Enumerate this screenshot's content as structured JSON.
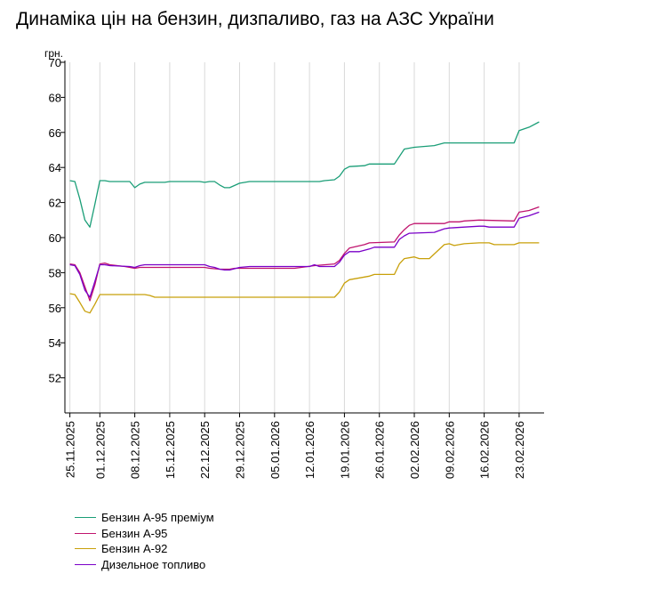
{
  "title": "Динаміка цін на бензин, дизпаливо, газ на АЗС України",
  "chart_data": {
    "type": "line",
    "title": "Динаміка цін на бензин, дизпаливо, газ на АЗС України",
    "ylabel": "грн.",
    "ylim": [
      50,
      70
    ],
    "yticks": [
      52,
      54,
      56,
      58,
      60,
      62,
      64,
      66,
      68,
      70
    ],
    "xlim": [
      "2025-11-24",
      "2026-02-28"
    ],
    "xticks": [
      {
        "date": "2025-11-25",
        "label": "25.11.2025"
      },
      {
        "date": "2025-12-01",
        "label": "01.12.2025"
      },
      {
        "date": "2025-12-08",
        "label": "08.12.2025"
      },
      {
        "date": "2025-12-15",
        "label": "15.12.2025"
      },
      {
        "date": "2025-12-22",
        "label": "22.12.2025"
      },
      {
        "date": "2025-12-29",
        "label": "29.12.2025"
      },
      {
        "date": "2026-01-05",
        "label": "05.01.2026"
      },
      {
        "date": "2026-01-12",
        "label": "12.01.2026"
      },
      {
        "date": "2026-01-19",
        "label": "19.01.2026"
      },
      {
        "date": "2026-01-26",
        "label": "26.01.2026"
      },
      {
        "date": "2026-02-02",
        "label": "02.02.2026"
      },
      {
        "date": "2026-02-09",
        "label": "09.02.2026"
      },
      {
        "date": "2026-02-16",
        "label": "16.02.2026"
      },
      {
        "date": "2026-02-23",
        "label": "23.02.2026"
      }
    ],
    "series": [
      {
        "name": "Бензин А-95 преміум",
        "color": "#1a9e77",
        "points": [
          [
            "2025-11-25",
            63.25
          ],
          [
            "2025-11-26",
            63.2
          ],
          [
            "2025-11-27",
            62.2
          ],
          [
            "2025-11-28",
            61.0
          ],
          [
            "2025-11-29",
            60.6
          ],
          [
            "2025-11-30",
            61.9
          ],
          [
            "2025-12-01",
            63.25
          ],
          [
            "2025-12-02",
            63.25
          ],
          [
            "2025-12-03",
            63.2
          ],
          [
            "2025-12-07",
            63.2
          ],
          [
            "2025-12-08",
            62.85
          ],
          [
            "2025-12-09",
            63.05
          ],
          [
            "2025-12-10",
            63.15
          ],
          [
            "2025-12-14",
            63.15
          ],
          [
            "2025-12-15",
            63.2
          ],
          [
            "2025-12-21",
            63.2
          ],
          [
            "2025-12-22",
            63.15
          ],
          [
            "2025-12-23",
            63.2
          ],
          [
            "2025-12-24",
            63.2
          ],
          [
            "2025-12-25",
            63.0
          ],
          [
            "2025-12-26",
            62.85
          ],
          [
            "2025-12-27",
            62.85
          ],
          [
            "2025-12-29",
            63.1
          ],
          [
            "2025-12-31",
            63.2
          ],
          [
            "2026-01-14",
            63.2
          ],
          [
            "2026-01-15",
            63.25
          ],
          [
            "2026-01-17",
            63.3
          ],
          [
            "2026-01-18",
            63.5
          ],
          [
            "2026-01-19",
            63.9
          ],
          [
            "2026-01-20",
            64.05
          ],
          [
            "2026-01-23",
            64.1
          ],
          [
            "2026-01-24",
            64.2
          ],
          [
            "2026-01-29",
            64.2
          ],
          [
            "2026-01-31",
            65.05
          ],
          [
            "2026-02-02",
            65.15
          ],
          [
            "2026-02-06",
            65.25
          ],
          [
            "2026-02-08",
            65.4
          ],
          [
            "2026-02-22",
            65.4
          ],
          [
            "2026-02-23",
            66.1
          ],
          [
            "2026-02-25",
            66.3
          ],
          [
            "2026-02-27",
            66.6
          ]
        ]
      },
      {
        "name": "Бензин А-95",
        "color": "#c0146e",
        "points": [
          [
            "2025-11-25",
            58.5
          ],
          [
            "2025-11-26",
            58.45
          ],
          [
            "2025-11-27",
            58.0
          ],
          [
            "2025-11-28",
            57.2
          ],
          [
            "2025-11-29",
            56.4
          ],
          [
            "2025-11-30",
            57.3
          ],
          [
            "2025-12-01",
            58.5
          ],
          [
            "2025-12-02",
            58.55
          ],
          [
            "2025-12-03",
            58.45
          ],
          [
            "2025-12-06",
            58.35
          ],
          [
            "2025-12-08",
            58.25
          ],
          [
            "2025-12-09",
            58.3
          ],
          [
            "2025-12-10",
            58.3
          ],
          [
            "2025-12-22",
            58.3
          ],
          [
            "2025-12-23",
            58.25
          ],
          [
            "2025-12-25",
            58.2
          ],
          [
            "2025-12-27",
            58.2
          ],
          [
            "2025-12-28",
            58.25
          ],
          [
            "2026-01-09",
            58.25
          ],
          [
            "2026-01-13",
            58.4
          ],
          [
            "2026-01-17",
            58.5
          ],
          [
            "2026-01-18",
            58.7
          ],
          [
            "2026-01-19",
            59.1
          ],
          [
            "2026-01-20",
            59.4
          ],
          [
            "2026-01-23",
            59.6
          ],
          [
            "2026-01-24",
            59.7
          ],
          [
            "2026-01-29",
            59.75
          ],
          [
            "2026-01-30",
            60.15
          ],
          [
            "2026-01-31",
            60.45
          ],
          [
            "2026-02-01",
            60.7
          ],
          [
            "2026-02-02",
            60.8
          ],
          [
            "2026-02-08",
            60.8
          ],
          [
            "2026-02-09",
            60.9
          ],
          [
            "2026-02-11",
            60.9
          ],
          [
            "2026-02-12",
            60.95
          ],
          [
            "2026-02-15",
            61.0
          ],
          [
            "2026-02-22",
            60.95
          ],
          [
            "2026-02-23",
            61.45
          ],
          [
            "2026-02-25",
            61.55
          ],
          [
            "2026-02-27",
            61.75
          ]
        ]
      },
      {
        "name": "Бензин А-92",
        "color": "#c8a00a",
        "points": [
          [
            "2025-11-25",
            56.8
          ],
          [
            "2025-11-26",
            56.75
          ],
          [
            "2025-11-27",
            56.3
          ],
          [
            "2025-11-28",
            55.8
          ],
          [
            "2025-11-29",
            55.7
          ],
          [
            "2025-11-30",
            56.2
          ],
          [
            "2025-12-01",
            56.75
          ],
          [
            "2025-12-10",
            56.75
          ],
          [
            "2025-12-11",
            56.7
          ],
          [
            "2025-12-12",
            56.6
          ],
          [
            "2026-01-17",
            56.6
          ],
          [
            "2026-01-18",
            56.9
          ],
          [
            "2026-01-19",
            57.4
          ],
          [
            "2026-01-20",
            57.6
          ],
          [
            "2026-01-22",
            57.7
          ],
          [
            "2026-01-24",
            57.8
          ],
          [
            "2026-01-25",
            57.9
          ],
          [
            "2026-01-29",
            57.9
          ],
          [
            "2026-01-30",
            58.5
          ],
          [
            "2026-01-31",
            58.8
          ],
          [
            "2026-02-02",
            58.9
          ],
          [
            "2026-02-03",
            58.8
          ],
          [
            "2026-02-05",
            58.8
          ],
          [
            "2026-02-08",
            59.6
          ],
          [
            "2026-02-09",
            59.65
          ],
          [
            "2026-02-10",
            59.55
          ],
          [
            "2026-02-12",
            59.65
          ],
          [
            "2026-02-15",
            59.7
          ],
          [
            "2026-02-17",
            59.7
          ],
          [
            "2026-02-18",
            59.6
          ],
          [
            "2026-02-22",
            59.6
          ],
          [
            "2026-02-23",
            59.7
          ],
          [
            "2026-02-27",
            59.7
          ]
        ]
      },
      {
        "name": "Дизельное топливо",
        "color": "#7a00c8",
        "points": [
          [
            "2025-11-25",
            58.45
          ],
          [
            "2025-11-26",
            58.4
          ],
          [
            "2025-11-27",
            57.9
          ],
          [
            "2025-11-28",
            57.0
          ],
          [
            "2025-11-29",
            56.6
          ],
          [
            "2025-11-30",
            57.5
          ],
          [
            "2025-12-01",
            58.45
          ],
          [
            "2025-12-02",
            58.45
          ],
          [
            "2025-12-03",
            58.4
          ],
          [
            "2025-12-07",
            58.35
          ],
          [
            "2025-12-08",
            58.3
          ],
          [
            "2025-12-09",
            58.4
          ],
          [
            "2025-12-10",
            58.45
          ],
          [
            "2025-12-22",
            58.45
          ],
          [
            "2025-12-23",
            58.35
          ],
          [
            "2025-12-24",
            58.3
          ],
          [
            "2025-12-25",
            58.2
          ],
          [
            "2025-12-26",
            58.15
          ],
          [
            "2025-12-27",
            58.15
          ],
          [
            "2025-12-29",
            58.3
          ],
          [
            "2025-12-31",
            58.35
          ],
          [
            "2026-01-12",
            58.35
          ],
          [
            "2026-01-13",
            58.45
          ],
          [
            "2026-01-14",
            58.35
          ],
          [
            "2026-01-17",
            58.35
          ],
          [
            "2026-01-18",
            58.6
          ],
          [
            "2026-01-19",
            59.0
          ],
          [
            "2026-01-20",
            59.2
          ],
          [
            "2026-01-22",
            59.2
          ],
          [
            "2026-01-24",
            59.35
          ],
          [
            "2026-01-25",
            59.45
          ],
          [
            "2026-01-29",
            59.45
          ],
          [
            "2026-01-30",
            59.9
          ],
          [
            "2026-01-31",
            60.1
          ],
          [
            "2026-02-01",
            60.25
          ],
          [
            "2026-02-06",
            60.3
          ],
          [
            "2026-02-07",
            60.4
          ],
          [
            "2026-02-08",
            60.5
          ],
          [
            "2026-02-09",
            60.55
          ],
          [
            "2026-02-12",
            60.6
          ],
          [
            "2026-02-15",
            60.65
          ],
          [
            "2026-02-16",
            60.65
          ],
          [
            "2026-02-17",
            60.6
          ],
          [
            "2026-02-22",
            60.6
          ],
          [
            "2026-02-23",
            61.1
          ],
          [
            "2026-02-25",
            61.25
          ],
          [
            "2026-02-27",
            61.45
          ]
        ]
      }
    ],
    "legend_position": "bottom-left",
    "grid": "vertical"
  }
}
